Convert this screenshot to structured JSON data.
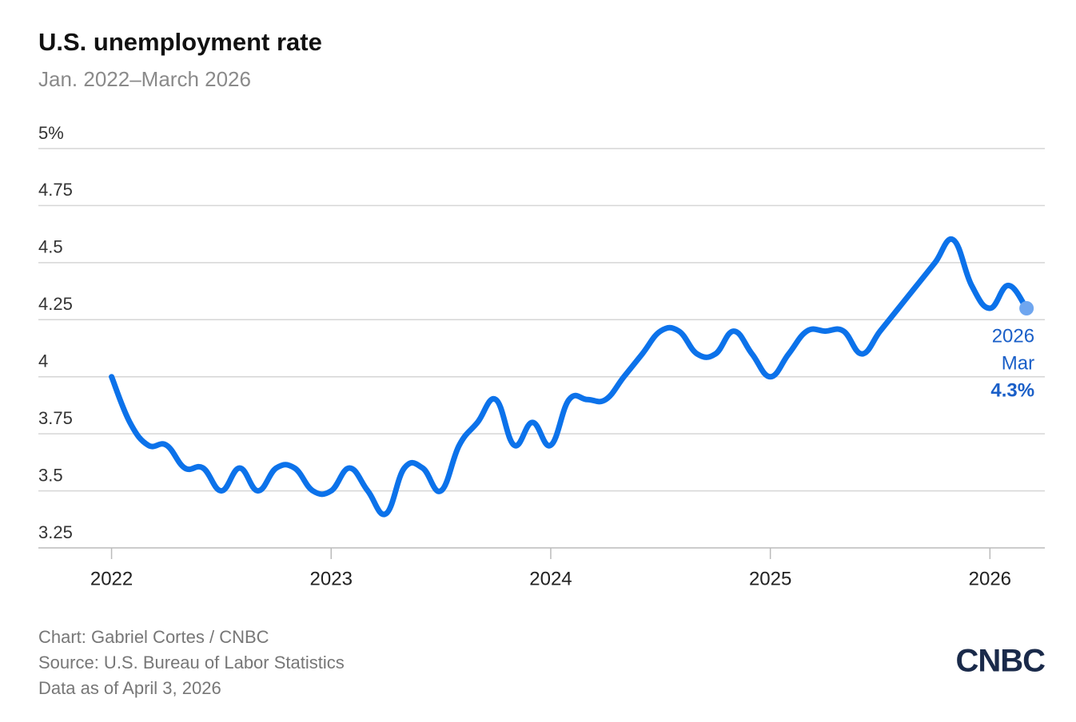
{
  "chart_data": {
    "type": "line",
    "title": "U.S. unemployment rate",
    "subtitle": "Jan. 2022–March 2026",
    "x": [
      "2022-01",
      "2022-02",
      "2022-03",
      "2022-04",
      "2022-05",
      "2022-06",
      "2022-07",
      "2022-08",
      "2022-09",
      "2022-10",
      "2022-11",
      "2022-12",
      "2023-01",
      "2023-02",
      "2023-03",
      "2023-04",
      "2023-05",
      "2023-06",
      "2023-07",
      "2023-08",
      "2023-09",
      "2023-10",
      "2023-11",
      "2023-12",
      "2024-01",
      "2024-02",
      "2024-03",
      "2024-04",
      "2024-05",
      "2024-06",
      "2024-07",
      "2024-08",
      "2024-09",
      "2024-10",
      "2024-11",
      "2024-12",
      "2025-01",
      "2025-02",
      "2025-03",
      "2025-04",
      "2025-05",
      "2025-06",
      "2025-07",
      "2025-08",
      "2025-09",
      "2025-10",
      "2025-11",
      "2025-12",
      "2026-01",
      "2026-02",
      "2026-03"
    ],
    "series": [
      {
        "name": "Unemployment rate",
        "color": "#0c72ea",
        "values": [
          4.0,
          3.8,
          3.7,
          3.7,
          3.6,
          3.6,
          3.5,
          3.6,
          3.5,
          3.6,
          3.6,
          3.5,
          3.5,
          3.6,
          3.5,
          3.4,
          3.6,
          3.6,
          3.5,
          3.7,
          3.8,
          3.9,
          3.7,
          3.8,
          3.7,
          3.9,
          3.9,
          3.9,
          4.0,
          4.1,
          4.2,
          4.2,
          4.1,
          4.1,
          4.2,
          4.1,
          4.0,
          4.1,
          4.2,
          4.2,
          4.2,
          4.1,
          4.2,
          4.3,
          4.4,
          4.5,
          4.6,
          4.4,
          4.3,
          4.4,
          4.3
        ]
      }
    ],
    "xlim": [
      "2021-09",
      "2026-04"
    ],
    "xticks": [
      {
        "value": "2022-01",
        "label": "2022"
      },
      {
        "value": "2023-01",
        "label": "2023"
      },
      {
        "value": "2024-01",
        "label": "2024"
      },
      {
        "value": "2025-01",
        "label": "2025"
      },
      {
        "value": "2026-01",
        "label": "2026"
      }
    ],
    "ylim": [
      3.25,
      5
    ],
    "yticks": [
      {
        "value": 5,
        "label": "5%"
      },
      4.75,
      4.5,
      4.25,
      4,
      3.75,
      3.5,
      3.25
    ],
    "grid": true,
    "annotation": {
      "year": "2026",
      "month": "Mar",
      "value_label": "4.3%"
    },
    "credit": "Chart: Gabriel Cortes / CNBC",
    "source": "Source: U.S. Bureau of Labor Statistics",
    "note": "Data as of April 3, 2026",
    "logo": "CNBC"
  }
}
